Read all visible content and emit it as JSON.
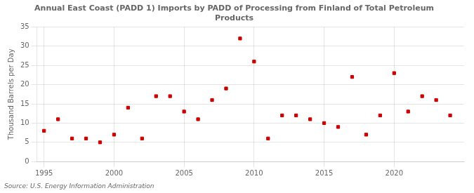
{
  "chart_data": {
    "type": "scatter",
    "title": "Annual East Coast (PADD 1) Imports by PADD of Processing from Finland of Total Petroleum\nProducts",
    "ylabel": "Thousand Barrels per Day",
    "annotation": "Source: U.S. Energy Information Administration",
    "x": [
      1995,
      1996,
      1997,
      1998,
      1999,
      2000,
      2001,
      2002,
      2003,
      2004,
      2005,
      2006,
      2007,
      2008,
      2009,
      2010,
      2011,
      2012,
      2013,
      2014,
      2015,
      2016,
      2017,
      2018,
      2019,
      2020,
      2021,
      2022,
      2023,
      2024
    ],
    "values": [
      8,
      11,
      6,
      6,
      5,
      7,
      14,
      6,
      17,
      17,
      13,
      11,
      16,
      19,
      32,
      26,
      6,
      12,
      12,
      11,
      10,
      9,
      22,
      7,
      12,
      23,
      13,
      17,
      16,
      12
    ],
    "color": "#cc0000",
    "marker": "square",
    "xlim": [
      1994.5,
      2025
    ],
    "xticks": [
      1995,
      2000,
      2005,
      2010,
      2015,
      2020
    ],
    "ylim": [
      0,
      35
    ],
    "yticks": [
      0,
      5,
      10,
      15,
      20,
      25,
      30,
      35
    ],
    "grid": true
  }
}
